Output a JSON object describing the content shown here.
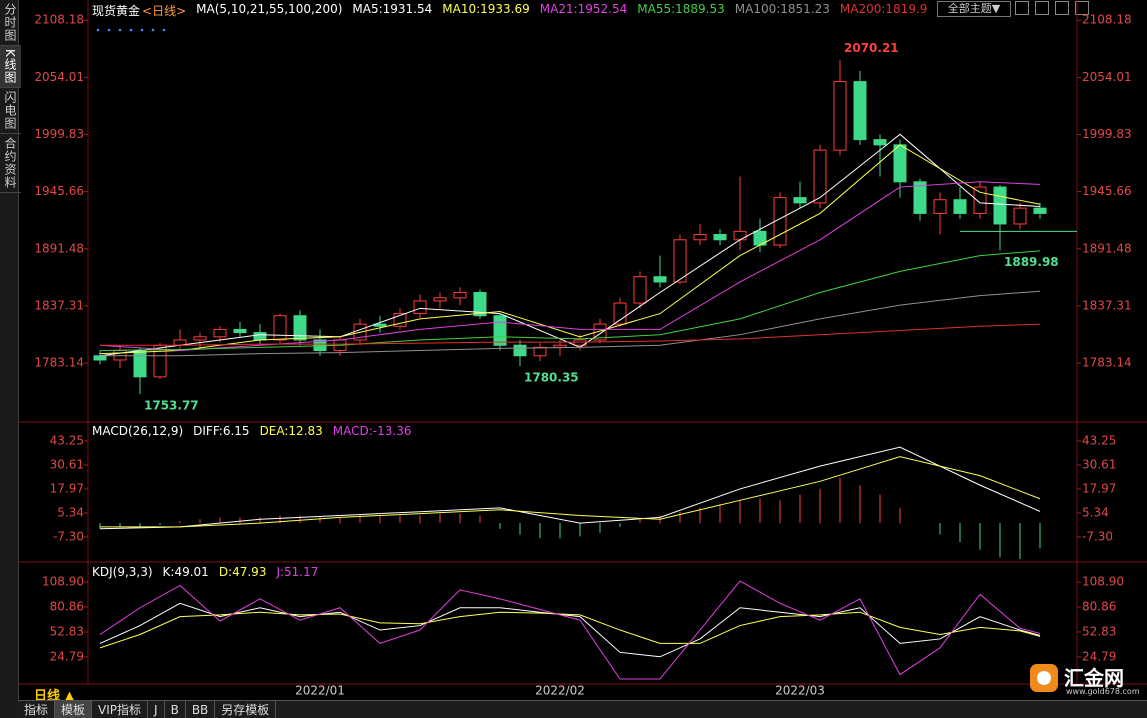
{
  "sidebar": [
    "分时图",
    "K线图",
    "闪电图",
    "合约资料"
  ],
  "header": {
    "symbol": "现货黄金",
    "period": "<日线>",
    "ma_params": "MA(5,10,21,55,100,200)",
    "theme": "全部主题▼"
  },
  "chart_data": [
    {
      "type": "candlestick",
      "up_color": "#ff3c3c",
      "down_color": "#3fd98a",
      "open": [
        1790,
        1786,
        1795,
        1770,
        1800,
        1805,
        1808,
        1815,
        1812,
        1805,
        1828,
        1805,
        1795,
        1805,
        1820,
        1818,
        1830,
        1842,
        1845,
        1850,
        1828,
        1800,
        1790,
        1798,
        1800,
        1805,
        1820,
        1840,
        1865,
        1860,
        1900,
        1905,
        1900,
        1908,
        1895,
        1940,
        1935,
        1985,
        2050,
        1995,
        1990,
        1955,
        1925,
        1938,
        1925,
        1950,
        1915,
        1930
      ],
      "high": [
        1795,
        1800,
        1798,
        1802,
        1815,
        1812,
        1818,
        1822,
        1820,
        1830,
        1833,
        1815,
        1808,
        1825,
        1828,
        1835,
        1848,
        1850,
        1855,
        1853,
        1830,
        1805,
        1802,
        1805,
        1810,
        1825,
        1845,
        1870,
        1885,
        1905,
        1915,
        1910,
        1960,
        1920,
        1945,
        1955,
        1990,
        2070.21,
        2060,
        2000,
        1995,
        1958,
        1945,
        1950,
        1955,
        1952,
        1935,
        1935
      ],
      "low": [
        1782,
        1778,
        1753.77,
        1768,
        1795,
        1798,
        1803,
        1808,
        1800,
        1802,
        1800,
        1790,
        1790,
        1800,
        1812,
        1815,
        1826,
        1835,
        1838,
        1825,
        1795,
        1780.35,
        1785,
        1790,
        1795,
        1802,
        1818,
        1835,
        1855,
        1858,
        1895,
        1895,
        1890,
        1888,
        1892,
        1930,
        1930,
        1980,
        1990,
        1960,
        1940,
        1918,
        1905,
        1920,
        1920,
        1889.98,
        1910,
        1920
      ],
      "close": [
        1786,
        1795,
        1770,
        1800,
        1805,
        1808,
        1815,
        1812,
        1805,
        1828,
        1805,
        1795,
        1805,
        1820,
        1818,
        1830,
        1842,
        1845,
        1850,
        1828,
        1800,
        1790,
        1798,
        1800,
        1805,
        1820,
        1840,
        1865,
        1860,
        1900,
        1905,
        1900,
        1908,
        1895,
        1940,
        1935,
        1985,
        2050,
        1995,
        1990,
        1955,
        1925,
        1938,
        1925,
        1950,
        1915,
        1930,
        1925
      ],
      "ylim": [
        1731,
        2116
      ],
      "yticks": [
        2108.18,
        2054.01,
        1999.83,
        1945.66,
        1891.48,
        1837.31,
        1783.14
      ],
      "hline": 1908,
      "ma_x": [
        0,
        4,
        8,
        12,
        16,
        20,
        24,
        28,
        32,
        36,
        40,
        44,
        47
      ],
      "series": [
        {
          "name": "MA5:1931.54",
          "color": "#ffffff",
          "values": [
            1790,
            1800,
            1810,
            1808,
            1835,
            1830,
            1798,
            1850,
            1900,
            1940,
            2000,
            1935,
            1931.54
          ]
        },
        {
          "name": "MA10:1933.69",
          "color": "#ffff50",
          "values": [
            1792,
            1795,
            1805,
            1808,
            1825,
            1832,
            1808,
            1830,
            1885,
            1925,
            1990,
            1945,
            1933.69
          ]
        },
        {
          "name": "MA21:1952.54",
          "color": "#e040e0",
          "values": [
            1800,
            1795,
            1800,
            1805,
            1815,
            1822,
            1815,
            1815,
            1860,
            1900,
            1950,
            1955,
            1952.54
          ]
        },
        {
          "name": "MA55:1889.53",
          "color": "#40d040",
          "values": [
            1795,
            1796,
            1798,
            1800,
            1805,
            1808,
            1806,
            1810,
            1825,
            1850,
            1870,
            1885,
            1889.53
          ]
        },
        {
          "name": "MA100:1851.23",
          "color": "#909090",
          "values": [
            1790,
            1790,
            1792,
            1793,
            1795,
            1797,
            1798,
            1800,
            1810,
            1825,
            1838,
            1847,
            1851.23
          ]
        },
        {
          "name": "MA200:1819.9",
          "color": "#e03030",
          "values": [
            1800,
            1800,
            1801,
            1801,
            1802,
            1803,
            1803,
            1804,
            1806,
            1810,
            1814,
            1818,
            1819.9
          ]
        }
      ],
      "annotations": [
        {
          "text": "2070.21",
          "index": 37,
          "side": "high",
          "color": "#ff4040"
        },
        {
          "text": "1753.77",
          "index": 2,
          "side": "low",
          "color": "#50e090"
        },
        {
          "text": "1780.35",
          "index": 21,
          "side": "low",
          "color": "#50e090"
        },
        {
          "text": "1889.98",
          "index": 45,
          "side": "low",
          "color": "#50e090"
        }
      ],
      "date_labels": [
        {
          "label": "2022/01",
          "index": 11
        },
        {
          "label": "2022/02",
          "index": 23
        },
        {
          "label": "2022/03",
          "index": 35
        }
      ]
    },
    {
      "type": "macd",
      "params": "MACD(26,12,9)",
      "hist_name": "MACD:-13.36",
      "up_color": "#ff4040",
      "down_color": "#3fd98a",
      "hist": [
        -3,
        -2,
        -2,
        -1,
        1,
        2,
        3,
        3,
        3,
        4,
        4,
        3,
        3,
        4,
        4,
        4,
        4,
        5,
        5,
        4,
        -3,
        -6,
        -8,
        -8,
        -7,
        -5,
        -2,
        2,
        4,
        6,
        8,
        10,
        12,
        13,
        12,
        15,
        18,
        24,
        20,
        15,
        8,
        0,
        -6,
        -10,
        -14,
        -18,
        -19,
        -13.36
      ],
      "ylim": [
        -18.4,
        50.1
      ],
      "yticks": [
        43.25,
        30.61,
        17.97,
        5.34,
        {
          "value": -7.3,
          "label": "-7.30"
        }
      ],
      "x": [
        0,
        4,
        8,
        12,
        16,
        20,
        24,
        28,
        32,
        36,
        40,
        44,
        47
      ],
      "series": [
        {
          "name": "DIFF:6.15",
          "color": "#ffffff",
          "values": [
            -3,
            -2,
            2,
            4,
            6,
            8,
            0,
            3,
            18,
            30,
            40,
            20,
            6.15
          ]
        },
        {
          "name": "DEA:12.83",
          "color": "#ffff50",
          "values": [
            -2,
            -2,
            0,
            3,
            5,
            7,
            4,
            2,
            12,
            22,
            35,
            25,
            12.83
          ]
        }
      ]
    },
    {
      "type": "kdj",
      "params": "KDJ(9,3,3)",
      "ylim": [
        -3.3,
        120.1
      ],
      "yticks": [
        {
          "value": 108.9,
          "label": "108.90"
        },
        80.86,
        52.83,
        24.79
      ],
      "x": [
        0,
        2,
        4,
        6,
        8,
        10,
        12,
        14,
        16,
        18,
        20,
        22,
        24,
        26,
        28,
        30,
        32,
        34,
        36,
        38,
        40,
        42,
        44,
        46,
        47
      ],
      "series": [
        {
          "name": "K:49.01",
          "color": "#ffffff",
          "values": [
            40,
            60,
            85,
            70,
            80,
            70,
            75,
            55,
            60,
            80,
            80,
            75,
            70,
            30,
            25,
            45,
            80,
            75,
            70,
            80,
            40,
            45,
            70,
            55,
            49.01
          ]
        },
        {
          "name": "D:47.93",
          "color": "#ffff50",
          "values": [
            35,
            50,
            70,
            72,
            75,
            72,
            73,
            63,
            62,
            70,
            75,
            74,
            72,
            55,
            40,
            40,
            60,
            70,
            72,
            75,
            58,
            50,
            58,
            54,
            47.93
          ]
        },
        {
          "name": "J:51.17",
          "color": "#e040e0",
          "values": [
            50,
            80,
            105,
            65,
            90,
            66,
            80,
            40,
            55,
            100,
            90,
            78,
            66,
            0,
            0,
            55,
            110,
            85,
            66,
            90,
            5,
            35,
            95,
            57,
            51.17
          ]
        }
      ]
    }
  ],
  "footer": {
    "period": "日线 ▲",
    "tabs": [
      "指标",
      "模板",
      "VIP指标",
      "J",
      "B",
      "BB",
      "另存模板"
    ]
  },
  "logo": {
    "name": "汇金网",
    "url": "www.gold678.com"
  }
}
